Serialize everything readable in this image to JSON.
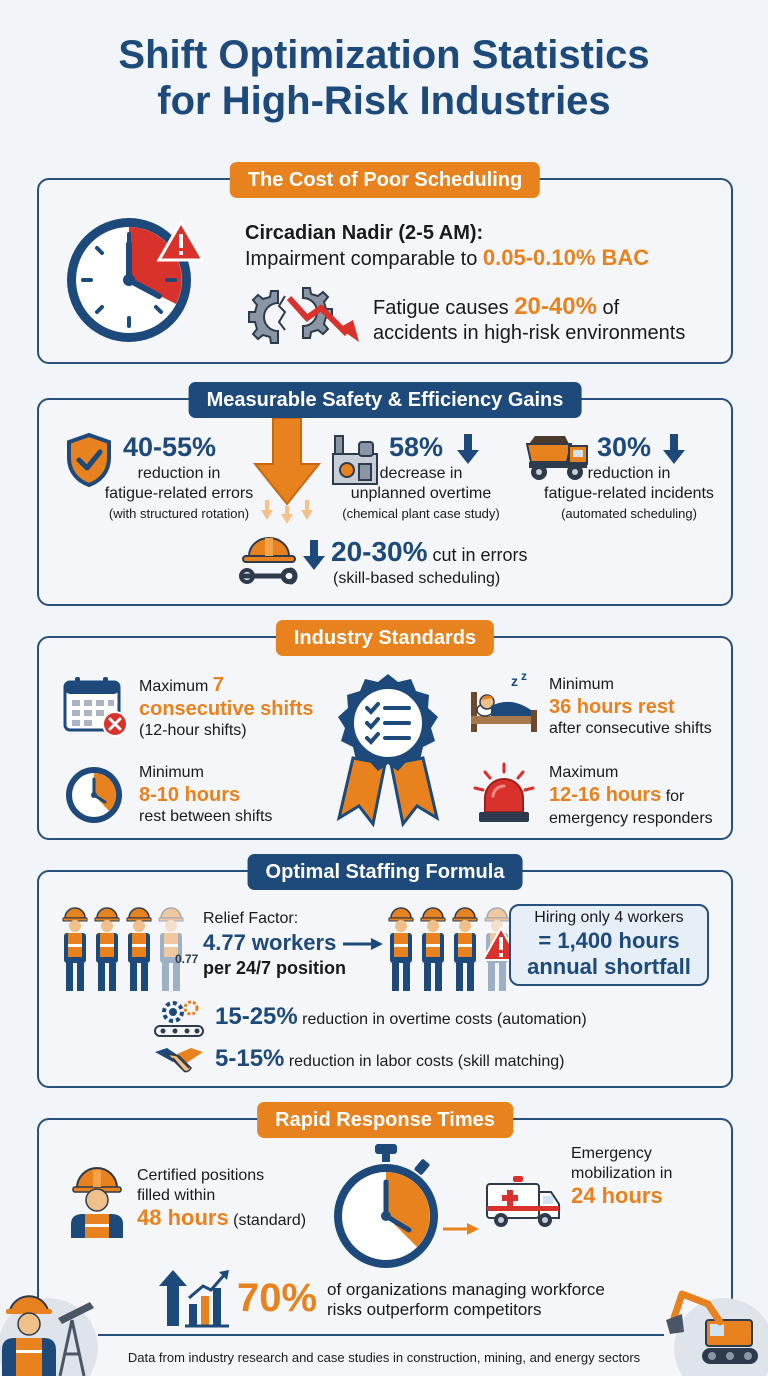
{
  "title": {
    "line1": "Shift Optimization Statistics",
    "line2": "for High-Risk Industries"
  },
  "cost": {
    "header": "The Cost of Poor Scheduling",
    "nadir_label": "Circadian Nadir (2-5 AM):",
    "impairment_text": "Impairment comparable to ",
    "impairment_value": "0.05-0.10% BAC",
    "fatigue_pre": "Fatigue causes ",
    "fatigue_value": "20-40%",
    "fatigue_post": " of",
    "fatigue_line2": "accidents in high-risk environments"
  },
  "gains": {
    "header": "Measurable Safety & Efficiency Gains",
    "items": [
      {
        "value": "40-55%",
        "line1": "reduction in",
        "line2": "fatigue-related errors",
        "note": "(with structured rotation)"
      },
      {
        "value": "58%",
        "line1": "decrease in",
        "line2": "unplanned overtime",
        "note": "(chemical plant case study)"
      },
      {
        "value": "30%",
        "line1": "reduction in",
        "line2": "fatigue-related incidents",
        "note": "(automated scheduling)"
      }
    ],
    "skill_value": "20-30%",
    "skill_text": " cut in errors",
    "skill_note": "(skill-based scheduling)"
  },
  "standards": {
    "header": "Industry Standards",
    "items": [
      {
        "label": "Maximum ",
        "value_inline": "7",
        "value": "consecutive shifts",
        "sub": "(12-hour shifts)"
      },
      {
        "label": "Minimum",
        "value": "36 hours rest",
        "sub": "after consecutive shifts"
      },
      {
        "label": "Minimum",
        "value": "8-10 hours",
        "sub": "rest between shifts"
      },
      {
        "label": "Maximum",
        "value": "12-16 hours",
        "value_suffix": " for",
        "sub": "emergency responders"
      }
    ]
  },
  "staffing": {
    "header": "Optimal Staffing Formula",
    "relief_label": "Relief Factor:",
    "relief_value": "4.77 workers",
    "relief_sub": "per 24/7 position",
    "fraction_label": "0.77",
    "hiring_line1": "Hiring only 4 workers",
    "hiring_line2": "= 1,400 hours",
    "hiring_line3": "annual shortfall",
    "overtime_value": "15-25%",
    "overtime_text": " reduction in overtime costs (automation)",
    "labor_value": "5-15%",
    "labor_text": " reduction in labor costs (skill matching)"
  },
  "response": {
    "header": "Rapid Response Times",
    "cert_line1": "Certified positions",
    "cert_line2": "filled within",
    "cert_value": "48 hours",
    "cert_suffix": " (standard)",
    "emerg_line1": "Emergency",
    "emerg_line2": "mobilization in",
    "emerg_value": "24 hours",
    "org_value": "70%",
    "org_line1": "of organizations managing workforce",
    "org_line2": "risks outperform competitors"
  },
  "footer": "Data from industry research and case studies in construction, mining, and energy sectors",
  "colors": {
    "navy": "#1d4a7a",
    "orange": "#e8821e",
    "red": "#d9322c",
    "background": "#f1f4f8"
  }
}
